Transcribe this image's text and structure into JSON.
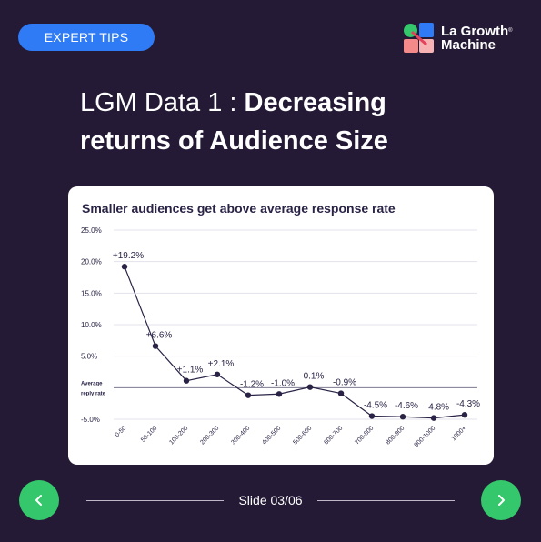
{
  "badge": {
    "label": "EXPERT TIPS"
  },
  "brand": {
    "name_line1": "La Growth",
    "name_line2": "Machine",
    "mark": "®"
  },
  "headline": {
    "light": "LGM Data 1 : ",
    "bold_part1": "Decreasing",
    "bold_part2": "returns of Audience Size"
  },
  "footer": {
    "slide_label": "Slide 03/06",
    "prev_icon": "chevron-left-icon",
    "next_icon": "chevron-right-icon"
  },
  "colors": {
    "background": "#241a36",
    "badge": "#2f7bf5",
    "nav": "#35c76b",
    "line": "#2a2346"
  },
  "chart_data": {
    "type": "line",
    "title": "Smaller audiences get above average response rate",
    "reference_label": "Average reply rate",
    "reference_line_1": "Average",
    "reference_line_2": "reply rate",
    "categories": [
      "0-50",
      "50-100",
      "100-200",
      "200-300",
      "300-400",
      "400-500",
      "500-600",
      "600-700",
      "700-800",
      "800-900",
      "900-1000",
      "1000+"
    ],
    "values": [
      19.2,
      6.6,
      1.1,
      2.1,
      -1.2,
      -1.0,
      0.1,
      -0.9,
      -4.5,
      -4.6,
      -4.8,
      -4.3
    ],
    "data_labels": [
      "+19.2%",
      "+6.6%",
      "+1.1%",
      "+2.1%",
      "-1.2%",
      "-1.0%",
      "0.1%",
      "-0.9%",
      "-4.5%",
      "-4.6%",
      "-4.8%",
      "-4.3%"
    ],
    "yticks": [
      25,
      20,
      15,
      10,
      5,
      -5
    ],
    "ytick_labels": [
      "25.0%",
      "20.0%",
      "15.0%",
      "10.0%",
      "5.0%",
      "-5.0%"
    ],
    "ylim": [
      -5,
      25
    ],
    "grid": true,
    "xlabel": "",
    "ylabel": ""
  }
}
